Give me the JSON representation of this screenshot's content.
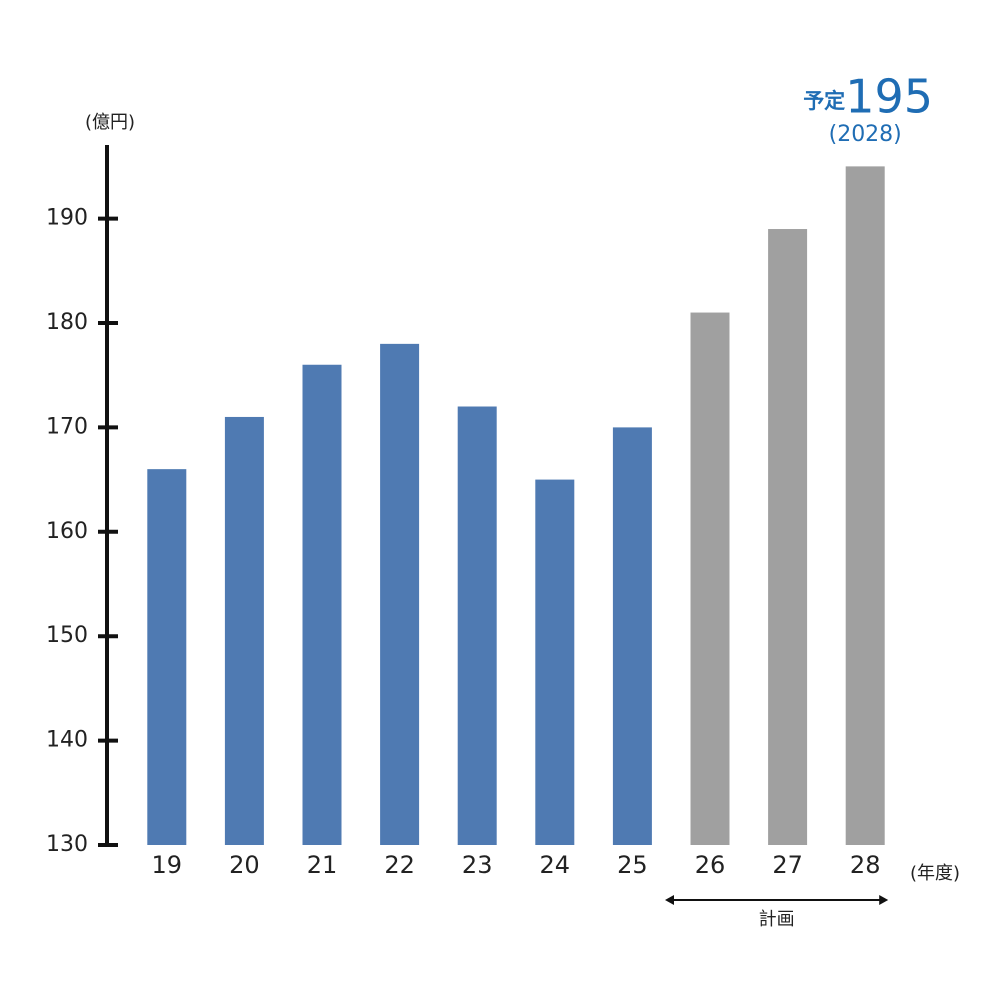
{
  "chart_data": {
    "type": "bar",
    "y_unit": "(億円)",
    "x_unit": "(年度)",
    "categories": [
      "19",
      "20",
      "21",
      "22",
      "23",
      "24",
      "25",
      "26",
      "27",
      "28"
    ],
    "values": [
      166,
      171,
      176,
      178,
      172,
      165,
      170,
      181,
      189,
      195
    ],
    "value_labels": [
      null,
      null,
      null,
      null,
      null,
      null,
      null,
      null,
      null,
      "195"
    ],
    "colors": [
      "#4f7ab2",
      "#4f7ab2",
      "#4f7ab2",
      "#4f7ab2",
      "#4f7ab2",
      "#4f7ab2",
      "#4f7ab2",
      "#a0a0a0",
      "#a0a0a0",
      "#a0a0a0"
    ],
    "annotation_prefix": "予定",
    "annotation_year": "(2028)",
    "annotation_color": "#1f6db4",
    "plan_label": "計画",
    "ylim": [
      130,
      197
    ],
    "yticks": [
      130,
      140,
      150,
      160,
      170,
      180,
      190
    ],
    "grid": false
  }
}
